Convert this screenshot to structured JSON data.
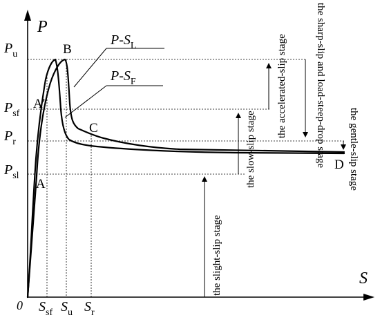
{
  "axes": {
    "y_label": "P",
    "x_label": "S",
    "origin_label": "0",
    "y_ticks": [
      {
        "main": "P",
        "sub": "u"
      },
      {
        "main": "P",
        "sub": "sf"
      },
      {
        "main": "P",
        "sub": "r"
      },
      {
        "main": "P",
        "sub": "sl"
      }
    ],
    "x_ticks": [
      {
        "main": "S",
        "sub": "sf"
      },
      {
        "main": "S",
        "sub": "u"
      },
      {
        "main": "S",
        "sub": "r"
      }
    ]
  },
  "curves": {
    "load_slip": {
      "prefix": "P-",
      "main": "S",
      "sub": "L"
    },
    "free_slip": {
      "prefix": "P-",
      "main": "S",
      "sub": "F"
    }
  },
  "points": {
    "a": "A",
    "a_prime": "A'",
    "b": "B",
    "c": "C",
    "d": "D"
  },
  "stages": {
    "slight": "the slight-slip stage",
    "slow": "the slow-slip stage",
    "accelerated": "the accelerated-slip stage",
    "sharp": "the sharp-slip and load-steep-drop stage",
    "gentle": "the gentle-slip stage"
  }
}
